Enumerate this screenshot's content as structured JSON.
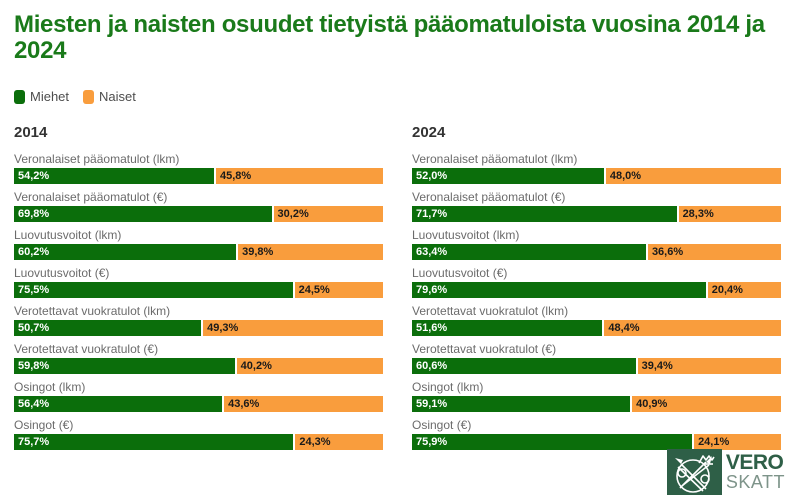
{
  "title": "Miesten ja naisten osuudet tietyistä pääomatuloista vuosina 2014 ja 2024",
  "colors": {
    "title_green": "#1a7a1a",
    "men_green": "#0b6e0b",
    "women_orange": "#f99d3d",
    "label_gray": "#6b6b6b",
    "logo_green": "#2e5f47"
  },
  "legend": {
    "men": "Miehet",
    "women": "Naiset"
  },
  "logo": {
    "line1": "VERO",
    "line2": "SKATT"
  },
  "chart_data": [
    {
      "type": "bar",
      "title": "2014",
      "orientation": "horizontal",
      "stacked": true,
      "unit": "%",
      "xlim": [
        0,
        100
      ],
      "categories": [
        "Veronalaiset pääomatulot (lkm)",
        "Veronalaiset pääomatulot (€)",
        "Luovutusvoitot (lkm)",
        "Luovutusvoitot (€)",
        "Verotettavat vuokratulot (lkm)",
        "Verotettavat vuokratulot (€)",
        "Osingot (lkm)",
        "Osingot (€)"
      ],
      "series": [
        {
          "name": "Miehet",
          "values": [
            54.2,
            69.8,
            60.2,
            75.5,
            50.7,
            59.8,
            56.4,
            75.7
          ]
        },
        {
          "name": "Naiset",
          "values": [
            45.8,
            30.2,
            39.8,
            24.5,
            49.3,
            40.2,
            43.6,
            24.3
          ]
        }
      ],
      "legend_position": "top",
      "grid": false
    },
    {
      "type": "bar",
      "title": "2024",
      "orientation": "horizontal",
      "stacked": true,
      "unit": "%",
      "xlim": [
        0,
        100
      ],
      "categories": [
        "Veronalaiset pääomatulot (lkm)",
        "Veronalaiset pääomatulot (€)",
        "Luovutusvoitot (lkm)",
        "Luovutusvoitot (€)",
        "Verotettavat vuokratulot (lkm)",
        "Verotettavat vuokratulot (€)",
        "Osingot (lkm)",
        "Osingot (€)"
      ],
      "series": [
        {
          "name": "Miehet",
          "values": [
            52.0,
            71.7,
            63.4,
            79.6,
            51.6,
            60.6,
            59.1,
            75.9
          ]
        },
        {
          "name": "Naiset",
          "values": [
            48.0,
            28.3,
            36.6,
            20.4,
            48.4,
            39.4,
            40.9,
            24.1
          ]
        }
      ],
      "legend_position": "top",
      "grid": false
    }
  ]
}
